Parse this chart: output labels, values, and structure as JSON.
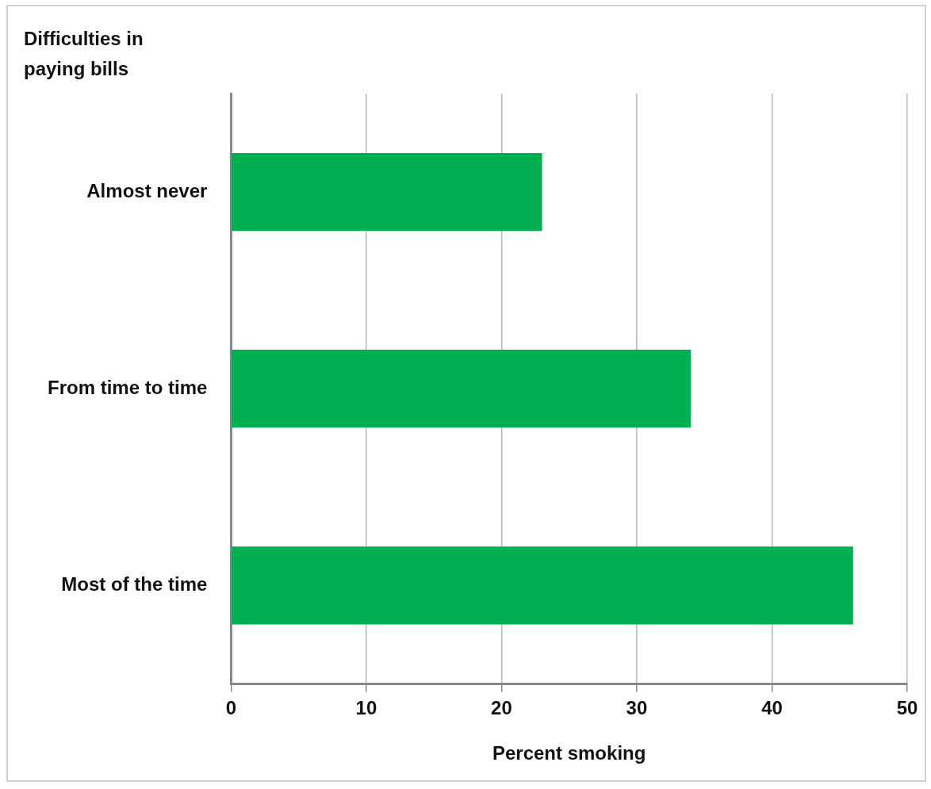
{
  "chart_data": {
    "type": "bar",
    "orientation": "horizontal",
    "ylabel": "Difficulties in paying bills",
    "xlabel": "Percent smoking",
    "categories": [
      "Almost never",
      "From time to time",
      "Most of the time"
    ],
    "values": [
      23,
      34,
      46
    ],
    "color": "#00b050",
    "xlim": [
      0,
      50
    ],
    "xticks": [
      0,
      10,
      20,
      30,
      40,
      50
    ],
    "grid": "x",
    "legend": false
  }
}
